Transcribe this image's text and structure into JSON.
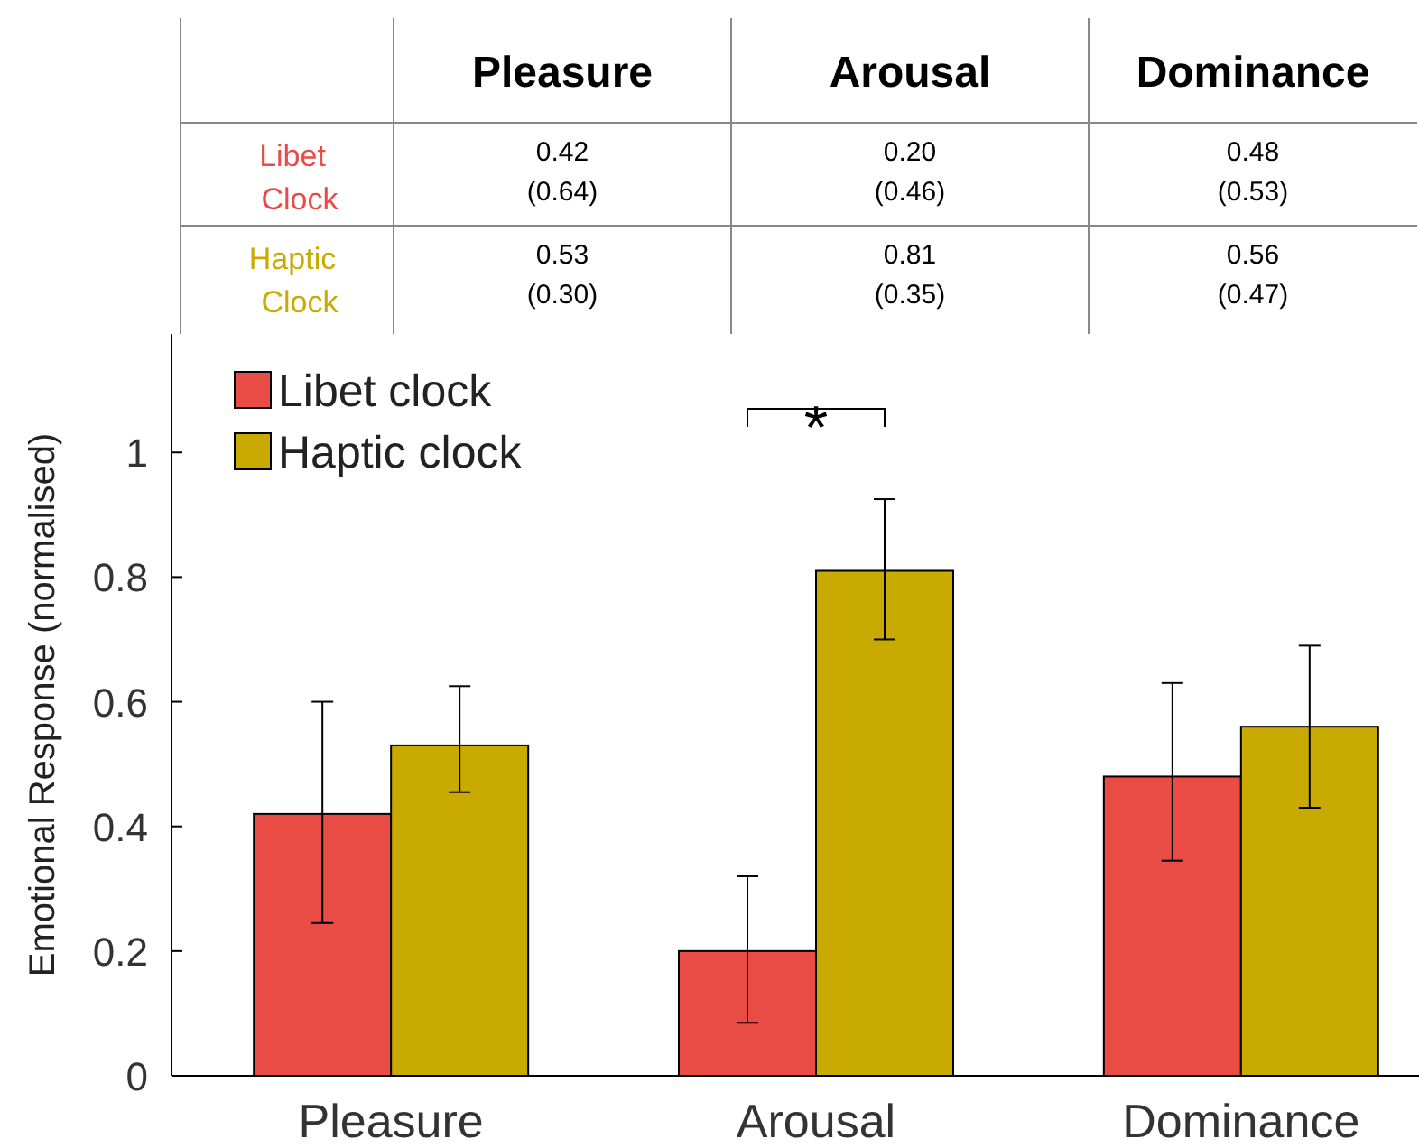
{
  "chart_data": {
    "type": "bar",
    "ylabel": "Emotional Response (normalised)",
    "categories": [
      "Pleasure",
      "Arousal",
      "Dominance"
    ],
    "series": [
      {
        "name": "Libet clock",
        "color": "#e84c44",
        "values": [
          0.42,
          0.2,
          0.48
        ],
        "errors": [
          [
            0.245,
            0.6
          ],
          [
            0.085,
            0.32
          ],
          [
            0.345,
            0.63
          ]
        ],
        "value_labels": [
          "0.42 (0.64)",
          "0.20 (0.46)",
          "0.48 (0.53)"
        ]
      },
      {
        "name": "Haptic clock",
        "color": "#c8aa00",
        "values": [
          0.53,
          0.81,
          0.56
        ],
        "errors": [
          [
            0.455,
            0.625
          ],
          [
            0.7,
            0.925
          ],
          [
            0.43,
            0.69
          ]
        ],
        "value_labels": [
          "0.53 (0.30)",
          "0.81 (0.35)",
          "0.56 (0.47)"
        ]
      }
    ],
    "annotations": [
      "*",
      "Libet Clock",
      "Haptic Clock"
    ],
    "ylim": [
      0,
      1.19
    ],
    "yticks": [
      0,
      0.2,
      0.4,
      0.6,
      0.8,
      1
    ],
    "grid": false,
    "legend": "top left"
  }
}
